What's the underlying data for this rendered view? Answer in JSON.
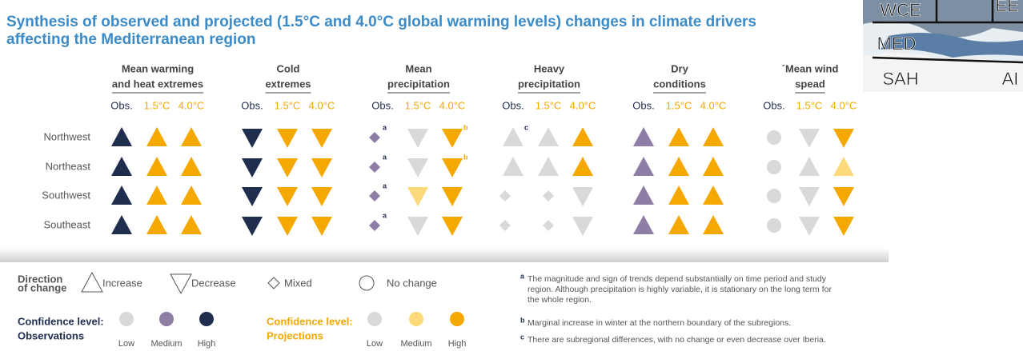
{
  "title": [
    "Synthesis of observed and projected (1.5°C and 4.0°C global warming levels) changes in climate drivers",
    "affecting the Mediterranean region"
  ],
  "map_labels": [
    "WCE",
    "EE",
    "MED",
    "SAH",
    "AI"
  ],
  "subheaders": [
    "Obs.",
    "1.5°C",
    "4.0°C"
  ],
  "rows": [
    "Northwest",
    "Northeast",
    "Southwest",
    "Southeast"
  ],
  "palette": {
    "obs": {
      "low": "#d9d9d9",
      "medium": "#8e7ea6",
      "high": "#1f2d4e"
    },
    "proj": {
      "low": "#d9d9d9",
      "medium": "#fcd97a",
      "high": "#f5a800"
    }
  },
  "groups": [
    {
      "title": [
        "Mean warming",
        "and heat extremes"
      ],
      "cells": [
        [
          [
            "up",
            "high"
          ],
          [
            "up",
            "high"
          ],
          [
            "up",
            "high"
          ]
        ],
        [
          [
            "up",
            "high"
          ],
          [
            "up",
            "high"
          ],
          [
            "up",
            "high"
          ]
        ],
        [
          [
            "up",
            "high"
          ],
          [
            "up",
            "high"
          ],
          [
            "up",
            "high"
          ]
        ],
        [
          [
            "up",
            "high"
          ],
          [
            "up",
            "high"
          ],
          [
            "up",
            "high"
          ]
        ]
      ]
    },
    {
      "title": [
        "Cold",
        "extremes"
      ],
      "cells": [
        [
          [
            "down",
            "high"
          ],
          [
            "down",
            "high"
          ],
          [
            "down",
            "high"
          ]
        ],
        [
          [
            "down",
            "high"
          ],
          [
            "down",
            "high"
          ],
          [
            "down",
            "high"
          ]
        ],
        [
          [
            "down",
            "high"
          ],
          [
            "down",
            "high"
          ],
          [
            "down",
            "high"
          ]
        ],
        [
          [
            "down",
            "high"
          ],
          [
            "down",
            "high"
          ],
          [
            "down",
            "high"
          ]
        ]
      ]
    },
    {
      "title": [
        "Mean",
        "precipitation"
      ],
      "cells": [
        [
          [
            "diamond",
            "medium",
            "a"
          ],
          [
            "down",
            "low"
          ],
          [
            "down",
            "high",
            "b"
          ]
        ],
        [
          [
            "diamond",
            "medium",
            "a"
          ],
          [
            "down",
            "low"
          ],
          [
            "down",
            "high",
            "b"
          ]
        ],
        [
          [
            "diamond",
            "medium",
            "a"
          ],
          [
            "down",
            "medium"
          ],
          [
            "down",
            "high"
          ]
        ],
        [
          [
            "diamond",
            "medium",
            "a"
          ],
          [
            "down",
            "low"
          ],
          [
            "down",
            "high"
          ]
        ]
      ]
    },
    {
      "title": [
        "Heavy",
        "precipitation"
      ],
      "cells": [
        [
          [
            "up",
            "low",
            "c"
          ],
          [
            "up",
            "low"
          ],
          [
            "up",
            "high"
          ]
        ],
        [
          [
            "up",
            "low"
          ],
          [
            "up",
            "low"
          ],
          [
            "up",
            "high"
          ]
        ],
        [
          [
            "diamond",
            "low"
          ],
          [
            "diamond",
            "low"
          ],
          [
            "down",
            "low"
          ]
        ],
        [
          [
            "diamond",
            "low"
          ],
          [
            "diamond",
            "low"
          ],
          [
            "down",
            "low"
          ]
        ]
      ]
    },
    {
      "title": [
        "Dry",
        "conditions"
      ],
      "cells": [
        [
          [
            "up",
            "medium"
          ],
          [
            "up",
            "high"
          ],
          [
            "up",
            "high"
          ]
        ],
        [
          [
            "up",
            "medium"
          ],
          [
            "up",
            "high"
          ],
          [
            "up",
            "high"
          ]
        ],
        [
          [
            "up",
            "medium"
          ],
          [
            "up",
            "high"
          ],
          [
            "up",
            "high"
          ]
        ],
        [
          [
            "up",
            "medium"
          ],
          [
            "up",
            "high"
          ],
          [
            "up",
            "high"
          ]
        ]
      ]
    },
    {
      "title": [
        "´Mean wind",
        "spead"
      ],
      "cells": [
        [
          [
            "circle",
            "low"
          ],
          [
            "down",
            "low"
          ],
          [
            "down",
            "high"
          ]
        ],
        [
          [
            "circle",
            "low"
          ],
          [
            "up",
            "low"
          ],
          [
            "up",
            "medium"
          ]
        ],
        [
          [
            "circle",
            "low"
          ],
          [
            "down",
            "low"
          ],
          [
            "down",
            "high"
          ]
        ],
        [
          [
            "circle",
            "low"
          ],
          [
            "down",
            "low"
          ],
          [
            "down",
            "high"
          ]
        ]
      ]
    }
  ],
  "legend": {
    "direction_title": [
      "Direction",
      "of change"
    ],
    "directions": [
      [
        "up",
        "Increase"
      ],
      [
        "down",
        "Decrease"
      ],
      [
        "diamond",
        "Mixed"
      ],
      [
        "circle",
        "No change"
      ]
    ],
    "obs_title": [
      "Confidence level:",
      "Observations"
    ],
    "proj_title": [
      "Confidence level:",
      "Projections"
    ],
    "levels": [
      "Low",
      "Medium",
      "High"
    ]
  },
  "footnotes": [
    {
      "mark": "a",
      "lines": [
        "The magnitude and sign of trends depend substantially on time period and study",
        "region. Although precipitation is highly variable, it is stationary on the long term for",
        "the whole region."
      ]
    },
    {
      "mark": "b",
      "lines": [
        "Marginal increase in winter at the northern boundary of the subregions."
      ]
    },
    {
      "mark": "c",
      "lines": [
        "There are subregional differences, with no change or even decrease over Iberia."
      ]
    }
  ]
}
